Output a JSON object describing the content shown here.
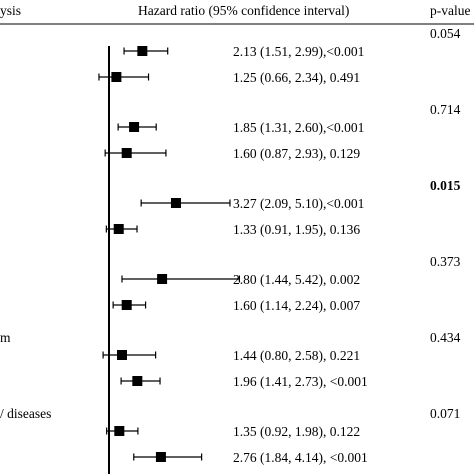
{
  "chart_data": {
    "type": "forest",
    "headers": {
      "analysis": "ysis",
      "hazard_ratio": "Hazard ratio (95% confidence interval)",
      "p_value": "p-value"
    },
    "x_reference": 1.0,
    "groups": [
      {
        "label": "",
        "p_interaction": "0.054",
        "bold": false,
        "rows": [
          {
            "hr": 2.13,
            "lo": 1.51,
            "hi": 2.99,
            "text": "2.13 (1.51, 2.99),<0.001"
          },
          {
            "hr": 1.25,
            "lo": 0.66,
            "hi": 2.34,
            "text": "1.25 (0.66, 2.34), 0.491"
          }
        ]
      },
      {
        "label": "",
        "p_interaction": "0.714",
        "bold": false,
        "rows": [
          {
            "hr": 1.85,
            "lo": 1.31,
            "hi": 2.6,
            "text": "1.85 (1.31, 2.60),<0.001"
          },
          {
            "hr": 1.6,
            "lo": 0.87,
            "hi": 2.93,
            "text": "1.60 (0.87, 2.93), 0.129"
          }
        ]
      },
      {
        "label": "",
        "p_interaction": "0.015",
        "bold": true,
        "rows": [
          {
            "hr": 3.27,
            "lo": 2.09,
            "hi": 5.1,
            "text": "3.27  (2.09, 5.10),<0.001"
          },
          {
            "hr": 1.33,
            "lo": 0.91,
            "hi": 1.95,
            "text": "1.33  (0.91, 1.95), 0.136"
          }
        ]
      },
      {
        "label": "",
        "p_interaction": "0.373",
        "bold": false,
        "rows": [
          {
            "hr": 2.8,
            "lo": 1.44,
            "hi": 5.42,
            "text": "2.80 (1.44, 5.42), 0.002"
          },
          {
            "hr": 1.6,
            "lo": 1.14,
            "hi": 2.24,
            "text": "1.60 (1.14, 2.24), 0.007"
          }
        ]
      },
      {
        "label": "m",
        "p_interaction": "0.434",
        "bold": false,
        "rows": [
          {
            "hr": 1.44,
            "lo": 0.8,
            "hi": 2.58,
            "text": "1.44 (0.80, 2.58), 0.221"
          },
          {
            "hr": 1.96,
            "lo": 1.41,
            "hi": 2.73,
            "text": "1.96 (1.41, 2.73), <0.001"
          }
        ]
      },
      {
        "label": "/ diseases",
        "p_interaction": "0.071",
        "bold": false,
        "rows": [
          {
            "hr": 1.35,
            "lo": 0.92,
            "hi": 1.98,
            "text": "1.35 (0.92, 1.98), 0.122"
          },
          {
            "hr": 2.76,
            "lo": 1.84,
            "hi": 4.14,
            "text": "2.76 (1.84, 4.14), <0.001"
          }
        ]
      }
    ]
  }
}
